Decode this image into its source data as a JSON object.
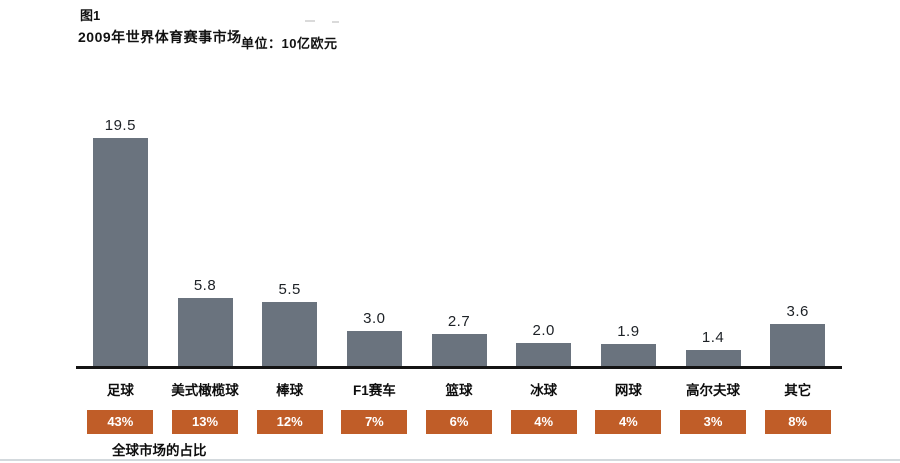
{
  "header": {
    "figure_label": "图1",
    "title": "2009年世界体育赛事市场",
    "unit": "单位：10亿欧元"
  },
  "chart_data": {
    "type": "bar",
    "title": "2009年世界体育赛事市场",
    "unit_label": "单位：10亿欧元",
    "categories": [
      "足球",
      "美式橄榄球",
      "棒球",
      "F1赛车",
      "篮球",
      "冰球",
      "网球",
      "高尔夫球",
      "其它"
    ],
    "values": [
      19.5,
      5.8,
      5.5,
      3.0,
      2.7,
      2.0,
      1.9,
      1.4,
      3.6
    ],
    "value_labels": [
      "19.5",
      "5.8",
      "5.5",
      "3.0",
      "2.7",
      "2.0",
      "1.9",
      "1.4",
      "3.6"
    ],
    "share_percent": [
      "43%",
      "13%",
      "12%",
      "7%",
      "6%",
      "4%",
      "4%",
      "3%",
      "8%"
    ],
    "footnote": "全球市场的占比",
    "xlabel": "",
    "ylabel": "",
    "ylim": [
      0,
      20
    ],
    "grid": false,
    "legend": false,
    "colors": {
      "bar": "#6a737e",
      "badge": "#c05d28",
      "axis": "#141414"
    }
  }
}
